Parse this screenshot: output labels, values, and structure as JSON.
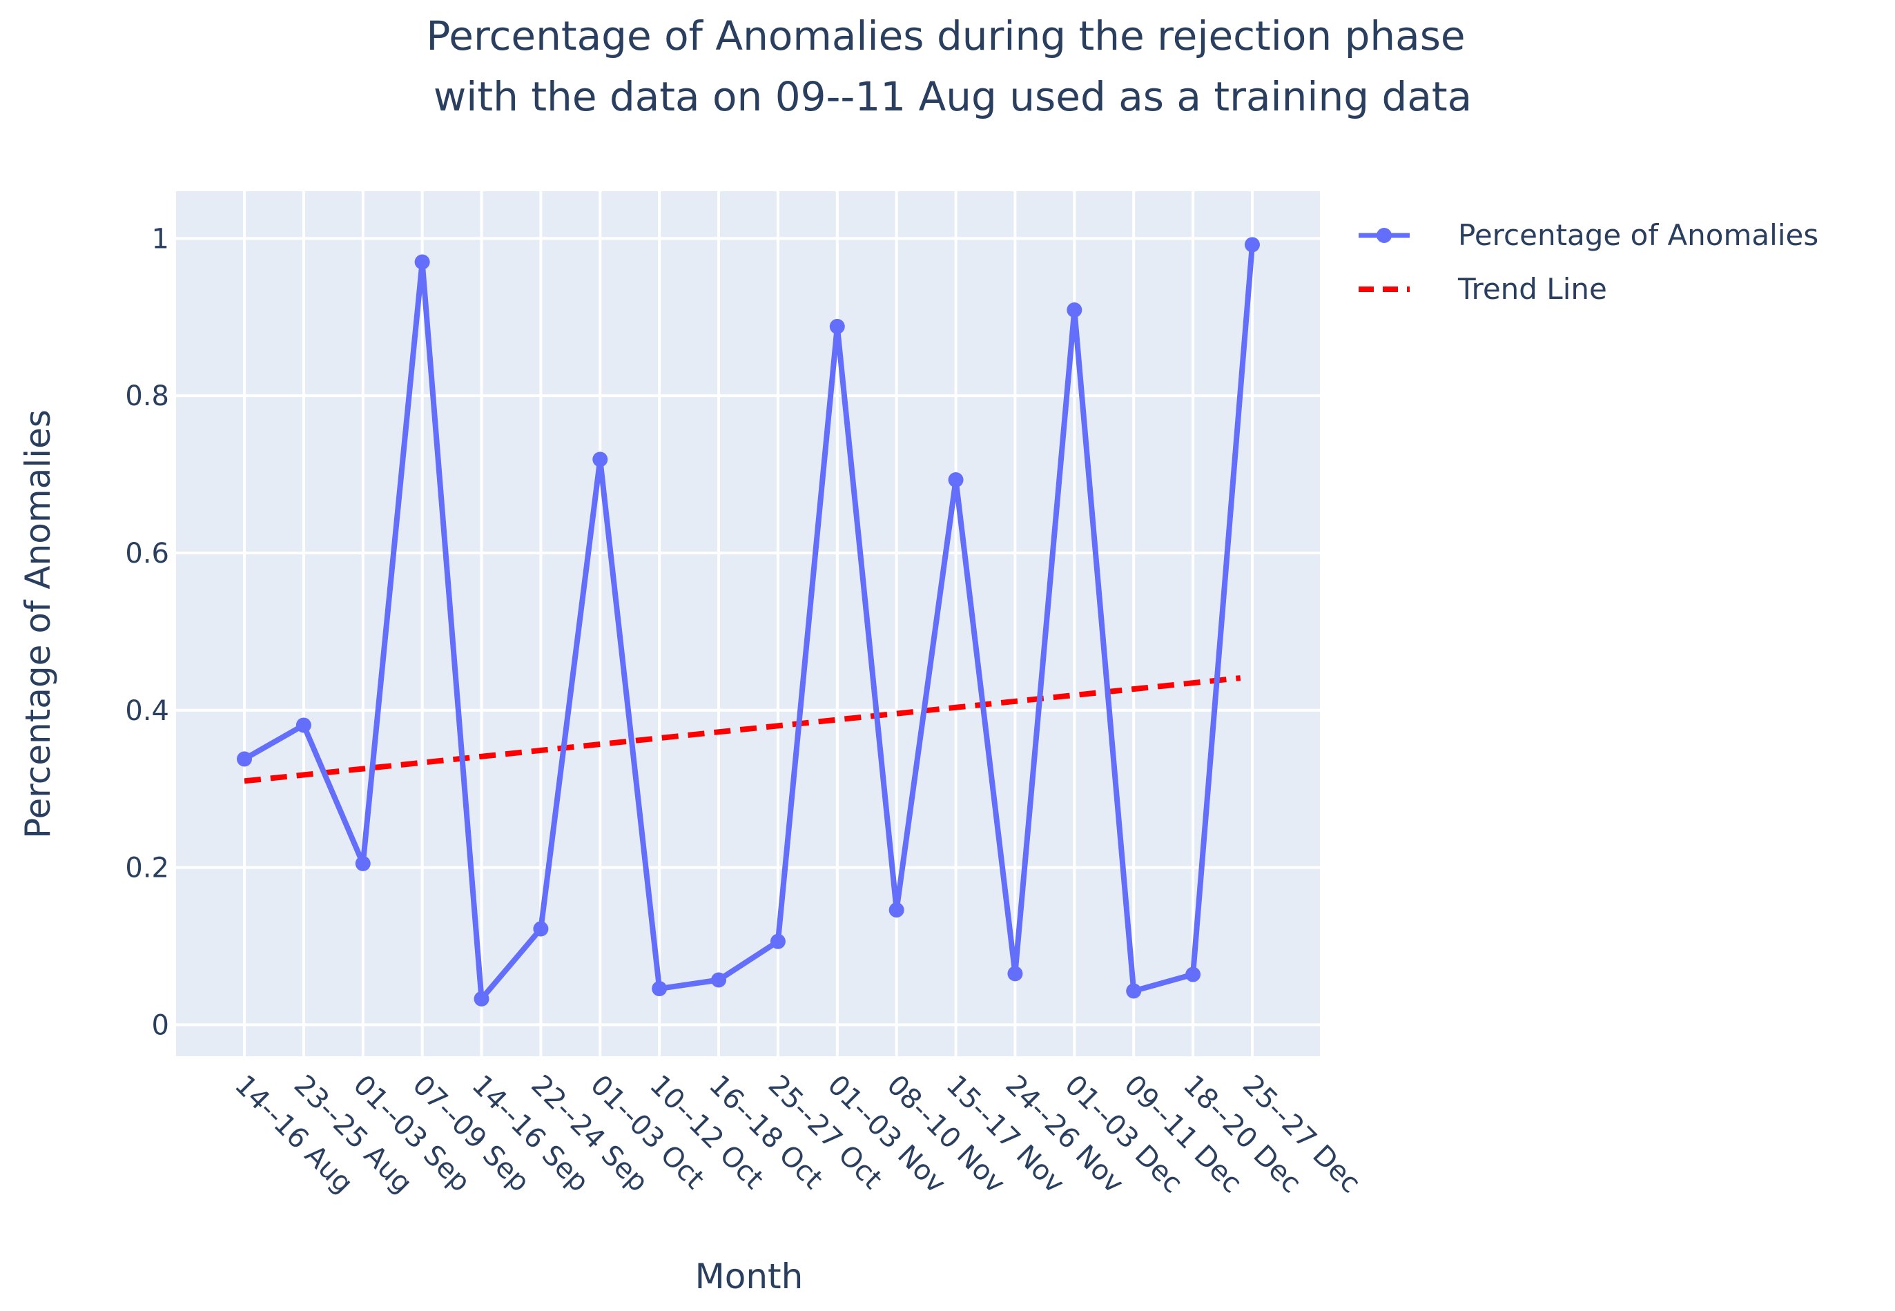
{
  "chart_data": {
    "type": "line",
    "title": "Percentage of Anomalies during the rejection phase",
    "subtitle": "with the data on 09--11 Aug used as a training data",
    "xlabel": "Month",
    "ylabel": "Percentage of Anomalies",
    "ylim": [
      -0.04,
      1.06
    ],
    "yticks": [
      0,
      0.2,
      0.4,
      0.6,
      0.8,
      1
    ],
    "ytick_labels": [
      "0",
      "0.2",
      "0.4",
      "0.6",
      "0.8",
      "1"
    ],
    "categories": [
      "14--16 Aug",
      "23--25 Aug",
      "01--03 Sep",
      "07--09 Sep",
      "14--16 Sep",
      "22--24 Sep",
      "01--03 Oct",
      "10--12 Oct",
      "16--18 Oct",
      "25--27 Oct",
      "01--03 Nov",
      "08--10 Nov",
      "15--17 Nov",
      "24--26 Nov",
      "01--03 Dec",
      "09--11 Dec",
      "18--20 Dec",
      "25--27 Dec"
    ],
    "series": [
      {
        "name": "Percentage of Anomalies",
        "style": "lines+markers",
        "color": "#636efa",
        "values": [
          0.338,
          0.381,
          0.205,
          0.97,
          0.033,
          0.122,
          0.719,
          0.046,
          0.057,
          0.106,
          0.888,
          0.146,
          0.693,
          0.065,
          0.909,
          0.043,
          0.064,
          0.992
        ]
      },
      {
        "name": "Trend Line",
        "style": "dash",
        "color": "#ff0000",
        "x_start": 0,
        "x_end": 16.8,
        "y_start": 0.31,
        "y_end": 0.441
      }
    ],
    "legend_position": "top-right",
    "grid": true,
    "plot_background": "#e5ecf6",
    "grid_color": "#ffffff"
  }
}
